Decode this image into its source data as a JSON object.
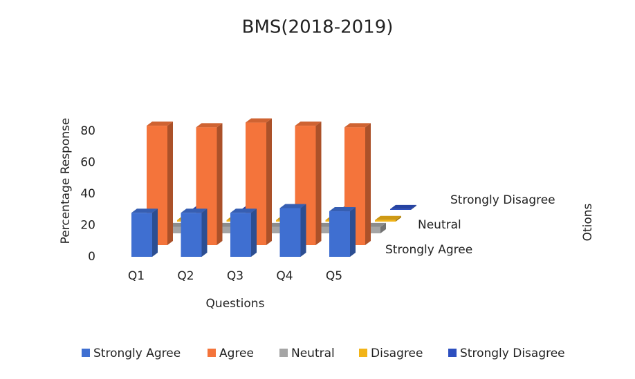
{
  "chart_data": {
    "type": "bar3d",
    "title": "BMS(2018-2019)",
    "y_label": "Percentage Response",
    "x_label": "Questions",
    "z_label": "Otions",
    "categories": [
      "Q1",
      "Q2",
      "Q3",
      "Q4",
      "Q5"
    ],
    "depth_labels": [
      "Strongly Agree",
      "Neutral",
      "Strongly Disagree"
    ],
    "series": [
      {
        "name": "Strongly Agree",
        "color": "#3f6fd1",
        "values": [
          28,
          28,
          28,
          31,
          29
        ]
      },
      {
        "name": "Agree",
        "color": "#f4743b",
        "values": [
          76,
          75,
          78,
          76,
          75
        ]
      },
      {
        "name": "Neutral",
        "color": "#a5a5a5",
        "values": [
          4,
          4,
          4,
          4,
          4
        ]
      },
      {
        "name": "Disagree",
        "color": "#f2b418",
        "values": [
          1,
          1,
          1,
          1,
          1
        ]
      },
      {
        "name": "Strongly Disagree",
        "color": "#2d4fbf",
        "values": [
          0.5,
          0.5,
          0.5,
          0.5,
          0.5
        ]
      }
    ],
    "ylim": [
      0,
      80
    ],
    "yticks": [
      0,
      20,
      40,
      60,
      80
    ],
    "legend": "bottom"
  }
}
